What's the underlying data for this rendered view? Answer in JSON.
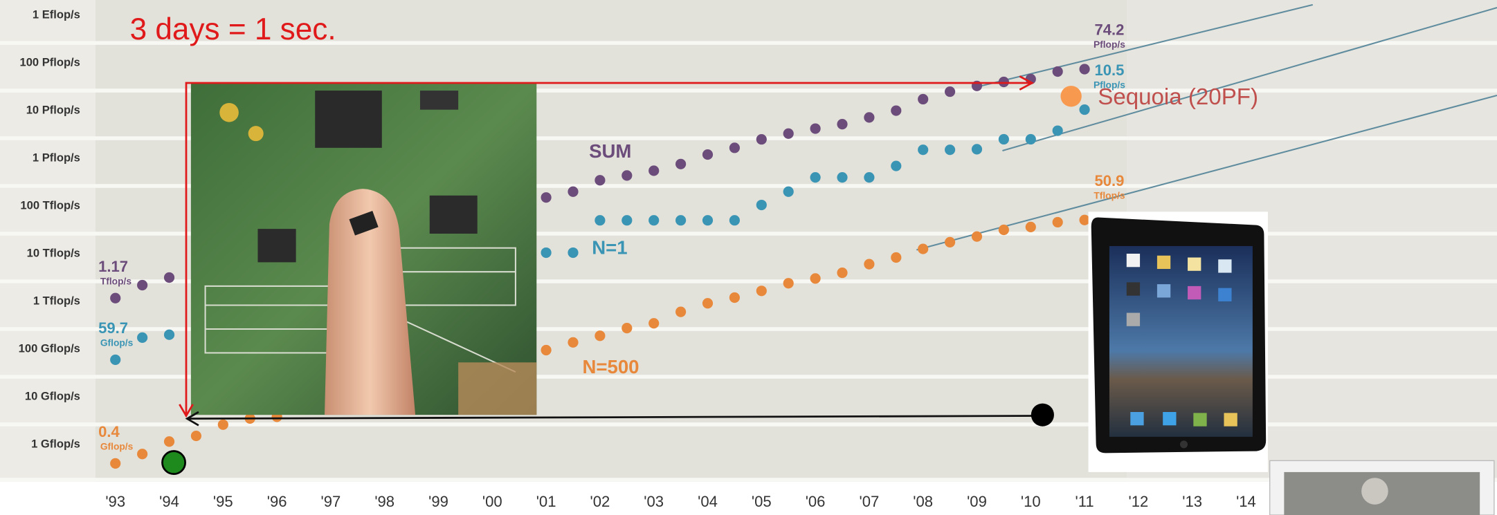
{
  "chart_data": {
    "type": "scatter",
    "title": "3 days = 1 sec.",
    "log_y": true,
    "x": [
      1993,
      1993.5,
      1994,
      1994.5,
      1995,
      1995.5,
      1996,
      1996.5,
      1997,
      1997.5,
      1998,
      1998.5,
      1999,
      1999.5,
      2000,
      2000.5,
      2001,
      2001.5,
      2002,
      2002.5,
      2003,
      2003.5,
      2004,
      2004.5,
      2005,
      2005.5,
      2006,
      2006.5,
      2007,
      2007.5,
      2008,
      2008.5,
      2009,
      2009.5,
      2010,
      2010.5,
      2011
    ],
    "xlim": [
      1992.63,
      2018.66
    ],
    "xticks": [
      {
        "value": 1993,
        "label": "'93"
      },
      {
        "value": 1994,
        "label": "'94"
      },
      {
        "value": 1995,
        "label": "'95"
      },
      {
        "value": 1996,
        "label": "'96"
      },
      {
        "value": 1997,
        "label": "'97"
      },
      {
        "value": 1998,
        "label": "'98"
      },
      {
        "value": 1999,
        "label": "'99"
      },
      {
        "value": 2000,
        "label": "'00"
      },
      {
        "value": 2001,
        "label": "'01"
      },
      {
        "value": 2002,
        "label": "'02"
      },
      {
        "value": 2003,
        "label": "'03"
      },
      {
        "value": 2004,
        "label": "'04"
      },
      {
        "value": 2005,
        "label": "'05"
      },
      {
        "value": 2006,
        "label": "'06"
      },
      {
        "value": 2007,
        "label": "'07"
      },
      {
        "value": 2008,
        "label": "'08"
      },
      {
        "value": 2009,
        "label": "'09"
      },
      {
        "value": 2010,
        "label": "'10"
      },
      {
        "value": 2011,
        "label": "'11"
      },
      {
        "value": 2012,
        "label": "'12"
      },
      {
        "value": 2013,
        "label": "'13"
      },
      {
        "value": 2014,
        "label": "'14"
      }
    ],
    "ylim": [
      0.209,
      2090000000
    ],
    "yticks": [
      {
        "value": 1,
        "label": "1 Gflop/s"
      },
      {
        "value": 10,
        "label": "10 Gflop/s"
      },
      {
        "value": 100,
        "label": "100 Gflop/s"
      },
      {
        "value": 1000,
        "label": "1 Tflop/s"
      },
      {
        "value": 10000,
        "label": "10 Tflop/s"
      },
      {
        "value": 100000,
        "label": "100 Tflop/s"
      },
      {
        "value": 1000000,
        "label": "1 Pflop/s"
      },
      {
        "value": 10000000,
        "label": "10 Pflop/s"
      },
      {
        "value": 100000000,
        "label": "100 Pflop/s"
      },
      {
        "value": 1000000000,
        "label": "1 Eflop/s"
      }
    ],
    "series": [
      {
        "name": "SUM",
        "color": "#6b4c7a",
        "values": [
          1170,
          2190,
          3160,
          null,
          null,
          null,
          null,
          null,
          null,
          null,
          null,
          null,
          null,
          null,
          null,
          null,
          151000,
          200000,
          347000,
          436000,
          550000,
          759000,
          1200000,
          1660000,
          2500000,
          3300000,
          4200000,
          5200000,
          7200000,
          10000000,
          17400000,
          25000000,
          33000000,
          40000000,
          46000000,
          66000000,
          74200000
        ],
        "value_labels": [
          {
            "text": "1.17",
            "unit": "Tflop/s"
          },
          null,
          null,
          null,
          null,
          null,
          null,
          null,
          null,
          null,
          null,
          null,
          null,
          null,
          null,
          null,
          null,
          null,
          null,
          null,
          null,
          null,
          null,
          null,
          null,
          null,
          null,
          null,
          null,
          null,
          null,
          null,
          null,
          null,
          null,
          null,
          {
            "text": "74.2",
            "unit": "Pflop/s"
          }
        ]
      },
      {
        "name": "N=1",
        "color": "#3a95b5",
        "values": [
          59.7,
          174,
          200,
          null,
          null,
          null,
          null,
          null,
          null,
          null,
          null,
          null,
          null,
          null,
          null,
          null,
          10500,
          10500,
          50100,
          50100,
          50100,
          50100,
          50100,
          50100,
          105000,
          200000,
          398000,
          398000,
          398000,
          692000,
          1510000,
          1510000,
          1550000,
          2510000,
          2510000,
          3800000,
          10500000
        ],
        "value_labels": [
          {
            "text": "59.7",
            "unit": "Gflop/s"
          },
          null,
          null,
          null,
          null,
          null,
          null,
          null,
          null,
          null,
          null,
          null,
          null,
          null,
          null,
          null,
          null,
          null,
          null,
          null,
          null,
          null,
          null,
          null,
          null,
          null,
          null,
          null,
          null,
          null,
          null,
          null,
          null,
          null,
          null,
          null,
          {
            "text": "10.5",
            "unit": "Pflop/s"
          }
        ]
      },
      {
        "name": "N=500",
        "color": "#e8883a",
        "values": [
          0.4,
          0.63,
          1.15,
          1.51,
          2.6,
          3.5,
          3.8,
          null,
          null,
          null,
          null,
          null,
          null,
          null,
          null,
          null,
          95,
          138,
          190,
          275,
          347,
          603,
          912,
          1200,
          1660,
          2400,
          3020,
          3980,
          6030,
          8320,
          12600,
          17400,
          22900,
          31600,
          36300,
          45700,
          50900
        ],
        "value_labels": [
          {
            "text": "0.4",
            "unit": "Gflop/s"
          },
          null,
          null,
          null,
          null,
          null,
          null,
          null,
          null,
          null,
          null,
          null,
          null,
          null,
          null,
          null,
          null,
          null,
          null,
          null,
          null,
          null,
          null,
          null,
          null,
          null,
          null,
          null,
          null,
          null,
          null,
          null,
          null,
          null,
          null,
          null,
          {
            "text": "50.9",
            "unit": "Tflop/s"
          }
        ]
      }
    ],
    "highlight": {
      "label": "Sequoia (20PF)",
      "x": 2010.75,
      "value": 20000000,
      "color": "#f79a4f"
    }
  }
}
